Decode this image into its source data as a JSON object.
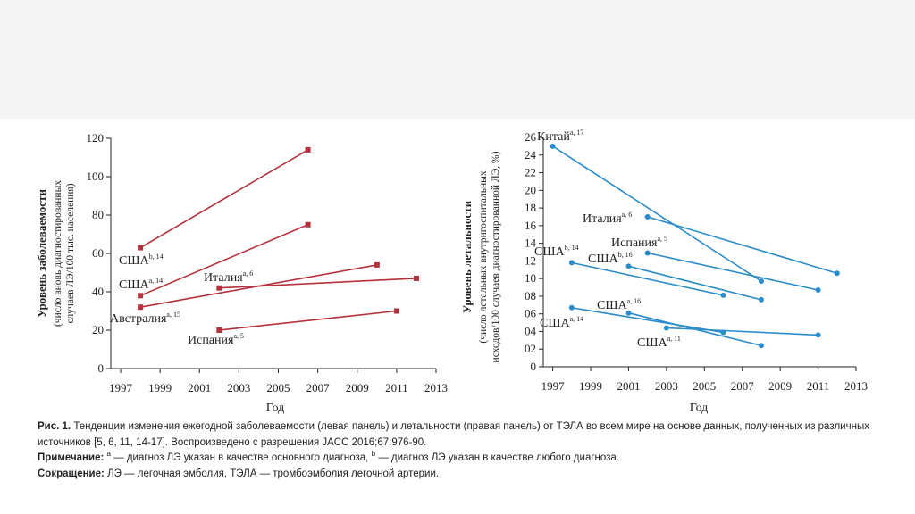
{
  "chart_data": [
    {
      "type": "line",
      "xlabel": "Год",
      "ylabel": "Уровень заболеваемости",
      "ylabel_sub": [
        "(число вновь диагностированных",
        "случаев ЛЭ/100 тыс. населения)"
      ],
      "x_ticks": [
        "1997",
        "1999",
        "2001",
        "2003",
        "2005",
        "2007",
        "2009",
        "2011",
        "2013"
      ],
      "y_ticks": [
        "0",
        "20",
        "40",
        "60",
        "80",
        "100",
        "120"
      ],
      "xlim": [
        1996.5,
        2013
      ],
      "ylim": [
        0,
        120
      ],
      "color": "#b5313c",
      "series": [
        {
          "name": "США",
          "sup": "b, 14",
          "points": [
            [
              1998,
              63
            ],
            [
              2006.5,
              114
            ]
          ]
        },
        {
          "name": "США",
          "sup": "a, 14",
          "points": [
            [
              1998,
              38
            ],
            [
              2006.5,
              75
            ]
          ]
        },
        {
          "name": "Австралия",
          "sup": "a, 15",
          "points": [
            [
              1998,
              32
            ],
            [
              2010,
              54
            ]
          ]
        },
        {
          "name": "Италия",
          "sup": "a, 6",
          "points": [
            [
              2002,
              42
            ],
            [
              2012,
              47
            ]
          ]
        },
        {
          "name": "Испания",
          "sup": "a, 5",
          "points": [
            [
              2002,
              20
            ],
            [
              2011,
              30
            ]
          ]
        }
      ]
    },
    {
      "type": "line",
      "xlabel": "Год",
      "ylabel": "Уровень летальности",
      "ylabel_sub": [
        "(число летальных внутригоспитальных",
        "исходов/100 случаев диагностированной ЛЭ, %)"
      ],
      "x_ticks": [
        "1997",
        "1999",
        "2001",
        "2003",
        "2005",
        "2007",
        "2009",
        "2011",
        "2013"
      ],
      "y_ticks": [
        "0",
        "02",
        "04",
        "06",
        "08",
        "10",
        "12",
        "14",
        "16",
        "18",
        "20",
        "22",
        "24",
        "26"
      ],
      "xlim": [
        1996.5,
        2013
      ],
      "ylim": [
        0,
        26
      ],
      "color": "#2b8ccb",
      "series": [
        {
          "name": "Китай",
          "sup": "a, 17",
          "points": [
            [
              1997,
              25
            ],
            [
              2008,
              9.7
            ]
          ]
        },
        {
          "name": "Италия",
          "sup": "a, 6",
          "points": [
            [
              2002,
              17
            ],
            [
              2012,
              10.6
            ]
          ]
        },
        {
          "name": "Испания",
          "sup": "a, 5",
          "points": [
            [
              2002,
              12.9
            ],
            [
              2011,
              8.7
            ]
          ]
        },
        {
          "name": "США",
          "sup": "b, 16",
          "points": [
            [
              2001,
              11.4
            ],
            [
              2008,
              7.6
            ]
          ]
        },
        {
          "name": "США",
          "sup": "b, 14",
          "points": [
            [
              1998,
              11.8
            ],
            [
              2006,
              8.1
            ]
          ]
        },
        {
          "name": "США",
          "sup": "a, 16",
          "points": [
            [
              2001,
              6.1
            ],
            [
              2008,
              2.4
            ]
          ]
        },
        {
          "name": "США",
          "sup": "a, 14",
          "points": [
            [
              1998,
              6.7
            ],
            [
              2006,
              3.9
            ]
          ]
        },
        {
          "name": "США",
          "sup": "a, 11",
          "points": [
            [
              2003,
              4.4
            ],
            [
              2011,
              3.6
            ]
          ]
        }
      ]
    }
  ],
  "caption": {
    "fig_label": "Рис. 1.",
    "fig_text": "Тенденции изменения ежегодной заболеваемости (левая панель) и летальности (правая панель) от ТЭЛА во всем мире на основе данных, полученных из различных источников [5, 6, 11, 14-17]. Воспроизведено с разрешения JACC 2016;67:976-90.",
    "note_label": "Примечание:",
    "note_a": "a",
    "note_a_text": " — диагноз ЛЭ указан в качестве основного диагноза, ",
    "note_b": "b",
    "note_b_text": " — диагноз ЛЭ указан в качестве любого диагноза.",
    "abbr_label": "Сокращение:",
    "abbr_text": "ЛЭ — легочная эмболия, ТЭЛА — тромбоэмболия легочной артерии."
  }
}
